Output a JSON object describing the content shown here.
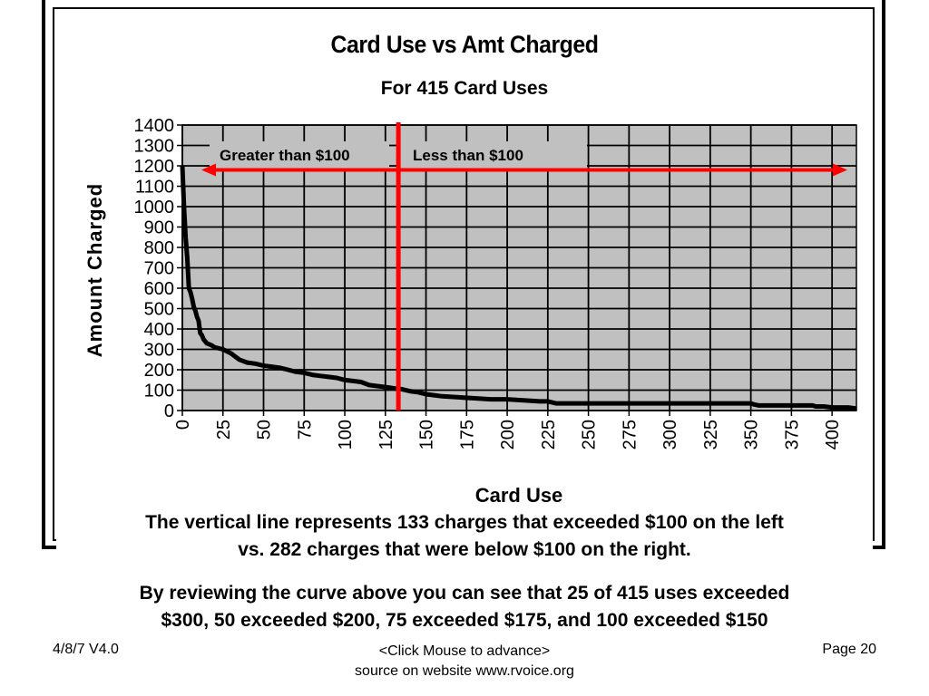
{
  "chart_data": {
    "type": "line",
    "title": "Card Use vs Amt Charged",
    "subtitle": "For 415 Card Uses",
    "xlabel": "Card Use",
    "ylabel": "Amount Charged",
    "xlim": [
      0,
      415
    ],
    "ylim": [
      0,
      1400
    ],
    "xticks": [
      0,
      25,
      50,
      75,
      100,
      125,
      150,
      175,
      200,
      225,
      250,
      275,
      300,
      325,
      350,
      375,
      400
    ],
    "yticks": [
      0,
      100,
      200,
      300,
      400,
      500,
      600,
      700,
      800,
      900,
      1000,
      1100,
      1200,
      1300,
      1400
    ],
    "grid": true,
    "series": [
      {
        "x": [
          0,
          1,
          2,
          3,
          4,
          5,
          6,
          7,
          8,
          9,
          10,
          11,
          12,
          13,
          15,
          18,
          20,
          25,
          30,
          35,
          40,
          45,
          50,
          55,
          60,
          65,
          70,
          75,
          80,
          85,
          90,
          95,
          100,
          105,
          110,
          115,
          120,
          125,
          130,
          133,
          135,
          140,
          145,
          150,
          155,
          160,
          170,
          180,
          190,
          200,
          210,
          220,
          225,
          230,
          250,
          275,
          300,
          325,
          350,
          352,
          355,
          375,
          388,
          390,
          395,
          400,
          410,
          415
        ],
        "y": [
          1200,
          1000,
          850,
          750,
          600,
          580,
          550,
          510,
          490,
          460,
          440,
          380,
          370,
          350,
          330,
          320,
          310,
          300,
          280,
          250,
          235,
          230,
          220,
          215,
          210,
          200,
          190,
          185,
          175,
          170,
          165,
          160,
          150,
          145,
          140,
          125,
          120,
          115,
          110,
          105,
          105,
          95,
          90,
          80,
          75,
          70,
          65,
          60,
          55,
          55,
          50,
          45,
          45,
          35,
          35,
          35,
          35,
          35,
          35,
          30,
          25,
          25,
          25,
          20,
          20,
          15,
          15,
          10
        ]
      }
    ],
    "annotations": {
      "vertical_line_x": 133,
      "left_label": "Greater than $100",
      "right_label": "Less than  $100",
      "arrow_y": 1180
    }
  },
  "captions": {
    "line1": "The vertical line represents 133 charges that exceeded $100 on the left",
    "line2": "vs. 282 charges that were below $100 on the right.",
    "line3": "By reviewing the curve above you can see that 25 of 415 uses exceeded",
    "line4": "$300, 50 exceeded $200, 75 exceeded $175, and 100 exceeded $150"
  },
  "footer": {
    "date_version": "4/8/7   V4.0",
    "advance": "<Click Mouse to advance>",
    "source": "source on website www.rvoice.org",
    "page": "Page 20"
  },
  "colors": {
    "plot_bg": "#c0c0c0",
    "grid": "#000000",
    "curve": "#000000",
    "accent": "#ff0000"
  }
}
